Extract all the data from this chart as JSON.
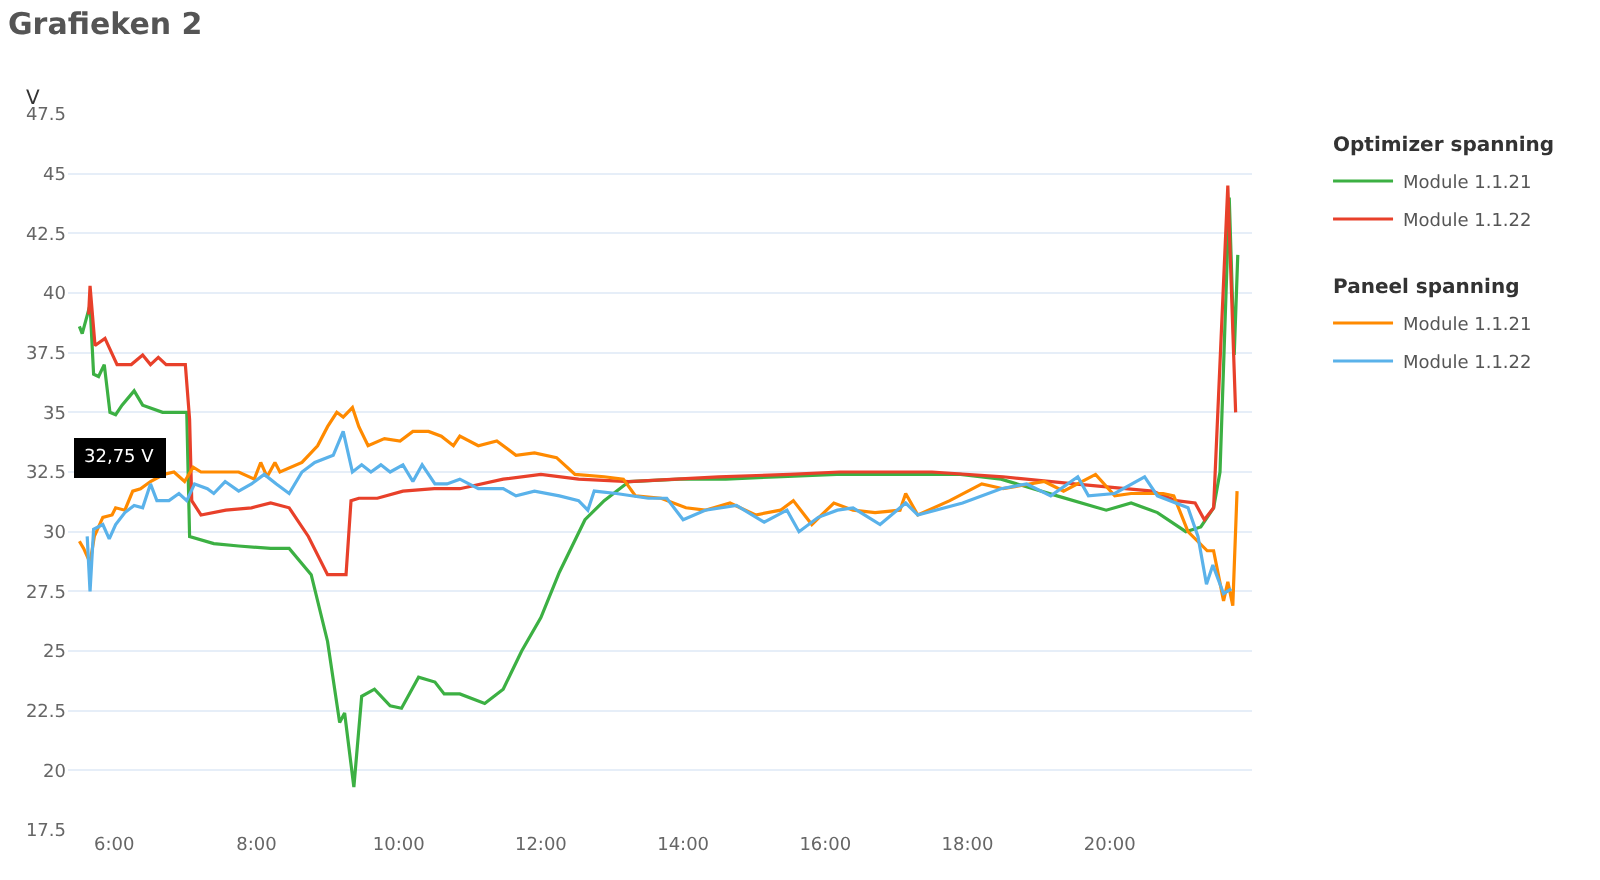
{
  "chart_data": {
    "type": "line",
    "title": "Grafieken 2",
    "ylabel": "V",
    "legend_title": [
      "Optimizer spanning",
      "Paneel spanning"
    ],
    "xlim": [
      5.35,
      22
    ],
    "xticks": [
      {
        "value": 6,
        "label": "6:00"
      },
      {
        "value": 8,
        "label": "8:00"
      },
      {
        "value": 10,
        "label": "10:00"
      },
      {
        "value": 12,
        "label": "12:00"
      },
      {
        "value": 14,
        "label": "14:00"
      },
      {
        "value": 16,
        "label": "16:00"
      },
      {
        "value": 18,
        "label": "18:00"
      },
      {
        "value": 20,
        "label": "20:00"
      }
    ],
    "ylim": [
      17.5,
      47.5
    ],
    "yticks": [
      17.5,
      20,
      22.5,
      25,
      27.5,
      30,
      32.5,
      35,
      37.5,
      40,
      42.5,
      45,
      47.5
    ],
    "grid": "y",
    "legend": "right",
    "marker": "none",
    "line_style": "solid",
    "annotations": [
      "32,75 V"
    ],
    "series": [
      {
        "name": "Module 1.1.21",
        "color": "#3cb043",
        "x": [
          5.51,
          5.55,
          5.66,
          5.71,
          5.78,
          5.86,
          5.94,
          6.02,
          6.11,
          6.28,
          6.4,
          6.68,
          7.02,
          7.06,
          7.4,
          7.75,
          8.2,
          8.46,
          8.77,
          9.0,
          9.17,
          9.24,
          9.37,
          9.48,
          9.66,
          9.88,
          10.04,
          10.28,
          10.51,
          10.64,
          10.86,
          11.21,
          11.47,
          11.73,
          12.0,
          12.26,
          12.62,
          12.89,
          13.24,
          13.95,
          14.6,
          15.3,
          16.16,
          17.9,
          18.47,
          19.26,
          19.95,
          20.3,
          20.67,
          21.07,
          21.28,
          21.46,
          21.55,
          21.68,
          21.75,
          21.8
        ],
        "values": [
          38.6,
          38.3,
          39.5,
          36.6,
          36.5,
          37.0,
          35.0,
          34.9,
          35.3,
          35.9,
          35.3,
          35.0,
          35.0,
          29.8,
          29.5,
          29.4,
          29.3,
          29.3,
          28.2,
          25.4,
          22.0,
          22.4,
          19.3,
          23.1,
          23.4,
          22.7,
          22.6,
          23.9,
          23.7,
          23.2,
          23.2,
          22.8,
          23.4,
          25.0,
          26.4,
          28.3,
          30.5,
          31.3,
          32.1,
          32.2,
          32.2,
          32.3,
          32.4,
          32.4,
          32.2,
          31.5,
          30.9,
          31.2,
          30.8,
          30.0,
          30.2,
          31.0,
          32.5,
          44.0,
          37.4,
          41.6
        ]
      },
      {
        "name": "Module 1.1.22",
        "color": "#e8402a",
        "x": [
          5.64,
          5.66,
          5.73,
          5.87,
          6.04,
          6.24,
          6.4,
          6.51,
          6.62,
          6.73,
          7.0,
          7.06,
          7.09,
          7.22,
          7.57,
          7.93,
          8.2,
          8.46,
          8.73,
          9.0,
          9.26,
          9.33,
          9.44,
          9.7,
          10.06,
          10.5,
          10.86,
          11.47,
          12.0,
          12.53,
          13.24,
          14.5,
          15.5,
          16.2,
          17.5,
          18.5,
          19.5,
          20.6,
          20.93,
          21.2,
          21.33,
          21.46,
          21.66,
          21.77
        ],
        "values": [
          39.1,
          40.3,
          37.8,
          38.1,
          37.0,
          37.0,
          37.4,
          37.0,
          37.3,
          37.0,
          37.0,
          34.7,
          31.3,
          30.7,
          30.9,
          31.0,
          31.2,
          31.0,
          29.8,
          28.2,
          28.2,
          31.3,
          31.4,
          31.4,
          31.7,
          31.8,
          31.8,
          32.2,
          32.4,
          32.2,
          32.1,
          32.3,
          32.4,
          32.5,
          32.5,
          32.3,
          32.0,
          31.7,
          31.3,
          31.2,
          30.5,
          31.0,
          44.5,
          35.0
        ]
      },
      {
        "name": "Module 1.1.21",
        "color": "#ff8a00",
        "x": [
          5.51,
          5.57,
          5.66,
          5.72,
          5.84,
          5.97,
          6.02,
          6.15,
          6.26,
          6.37,
          6.51,
          6.7,
          6.84,
          6.99,
          7.11,
          7.22,
          7.4,
          7.75,
          7.97,
          8.06,
          8.15,
          8.26,
          8.33,
          8.64,
          8.86,
          9.0,
          9.13,
          9.22,
          9.35,
          9.44,
          9.57,
          9.8,
          10.02,
          10.2,
          10.42,
          10.6,
          10.77,
          10.86,
          11.12,
          11.38,
          11.65,
          11.91,
          12.22,
          12.48,
          12.89,
          13.16,
          13.33,
          13.69,
          14.04,
          14.31,
          14.66,
          15.02,
          15.37,
          15.55,
          15.81,
          16.12,
          16.39,
          16.7,
          17.05,
          17.13,
          17.3,
          17.75,
          18.2,
          18.5,
          19.08,
          19.35,
          19.8,
          20.07,
          20.3,
          20.75,
          20.9,
          21.1,
          21.37,
          21.46,
          21.6,
          21.66,
          21.73,
          21.79
        ],
        "values": [
          29.6,
          29.3,
          28.7,
          29.8,
          30.6,
          30.7,
          31.0,
          30.9,
          31.7,
          31.8,
          32.1,
          32.4,
          32.5,
          32.1,
          32.7,
          32.5,
          32.5,
          32.5,
          32.2,
          32.9,
          32.3,
          32.9,
          32.5,
          32.9,
          33.6,
          34.4,
          35.0,
          34.8,
          35.2,
          34.4,
          33.6,
          33.9,
          33.8,
          34.2,
          34.2,
          34.0,
          33.6,
          34.0,
          33.6,
          33.8,
          33.2,
          33.3,
          33.1,
          32.4,
          32.3,
          32.2,
          31.5,
          31.4,
          31.0,
          30.9,
          31.2,
          30.7,
          30.9,
          31.3,
          30.3,
          31.2,
          30.9,
          30.8,
          30.9,
          31.6,
          30.7,
          31.3,
          32.0,
          31.8,
          32.1,
          31.7,
          32.4,
          31.5,
          31.6,
          31.6,
          31.5,
          30.0,
          29.2,
          29.2,
          27.1,
          27.9,
          26.9,
          31.7
        ]
      },
      {
        "name": "Module 1.1.22",
        "color": "#5ab2ea",
        "x": [
          5.62,
          5.66,
          5.71,
          5.84,
          5.93,
          6.02,
          6.15,
          6.28,
          6.4,
          6.51,
          6.6,
          6.77,
          6.91,
          7.02,
          7.13,
          7.31,
          7.4,
          7.56,
          7.75,
          7.93,
          8.11,
          8.28,
          8.46,
          8.64,
          8.82,
          9.08,
          9.22,
          9.35,
          9.48,
          9.61,
          9.75,
          9.88,
          10.06,
          10.2,
          10.33,
          10.51,
          10.68,
          10.86,
          11.12,
          11.47,
          11.65,
          11.91,
          12.26,
          12.53,
          12.66,
          12.75,
          13.06,
          13.51,
          13.77,
          14.0,
          14.31,
          14.75,
          15.14,
          15.46,
          15.63,
          15.9,
          16.17,
          16.39,
          16.77,
          17.13,
          17.3,
          17.93,
          18.47,
          18.83,
          19.17,
          19.55,
          19.7,
          20.07,
          20.49,
          20.67,
          21.1,
          21.24,
          21.36,
          21.45,
          21.6,
          21.71
        ],
        "values": [
          29.8,
          27.5,
          30.1,
          30.3,
          29.7,
          30.3,
          30.8,
          31.1,
          31.0,
          32.0,
          31.3,
          31.3,
          31.6,
          31.3,
          32.0,
          31.8,
          31.6,
          32.1,
          31.7,
          32.0,
          32.4,
          32.0,
          31.6,
          32.5,
          32.9,
          33.2,
          34.2,
          32.5,
          32.8,
          32.5,
          32.8,
          32.5,
          32.8,
          32.1,
          32.8,
          32.0,
          32.0,
          32.2,
          31.8,
          31.8,
          31.5,
          31.7,
          31.5,
          31.3,
          30.9,
          31.7,
          31.6,
          31.4,
          31.4,
          30.5,
          30.9,
          31.1,
          30.4,
          30.9,
          30.0,
          30.6,
          30.9,
          31.0,
          30.3,
          31.2,
          30.7,
          31.2,
          31.8,
          32.0,
          31.5,
          32.3,
          31.5,
          31.6,
          32.3,
          31.5,
          31.0,
          29.8,
          27.8,
          28.6,
          27.4,
          27.6
        ]
      }
    ]
  }
}
